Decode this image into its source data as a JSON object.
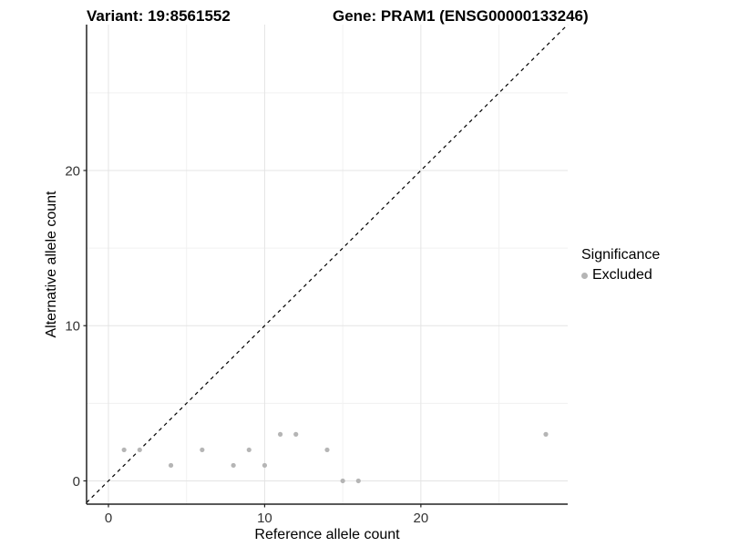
{
  "chart_data": {
    "type": "scatter",
    "title_left": "Variant: 19:8561552",
    "title_right": "Gene: PRAM1 (ENSG00000133246)",
    "xlabel": "Reference allele count",
    "ylabel": "Alternative allele count",
    "xlim": [
      -1.4,
      29.4
    ],
    "ylim": [
      -1.5,
      29.4
    ],
    "x_ticks": [
      0,
      10,
      20
    ],
    "y_ticks": [
      0,
      10,
      20
    ],
    "x_minor_gridlines": [
      5,
      15,
      25
    ],
    "y_minor_gridlines": [
      5,
      15,
      25
    ],
    "grid": true,
    "abline": {
      "slope": 1,
      "intercept": 0,
      "style": "dashed",
      "color": "#000000"
    },
    "series": [
      {
        "name": "Excluded",
        "color": "#b5b5b5",
        "points": [
          [
            1,
            2
          ],
          [
            2,
            2
          ],
          [
            4,
            1
          ],
          [
            6,
            2
          ],
          [
            8,
            1
          ],
          [
            9,
            2
          ],
          [
            10,
            1
          ],
          [
            11,
            3
          ],
          [
            12,
            3
          ],
          [
            14,
            2
          ],
          [
            15,
            0
          ],
          [
            16,
            0
          ],
          [
            28,
            3
          ]
        ]
      }
    ],
    "legend": {
      "title": "Significance",
      "position": "right",
      "entries": [
        {
          "label": "Excluded",
          "color": "#b5b5b5"
        }
      ]
    },
    "style_colors": {
      "grid_major": "#e4e4e4",
      "grid_minor": "#f1f1f1",
      "axis_line": "#222222",
      "tick_label": "#333333",
      "point": "#b5b5b5"
    }
  }
}
